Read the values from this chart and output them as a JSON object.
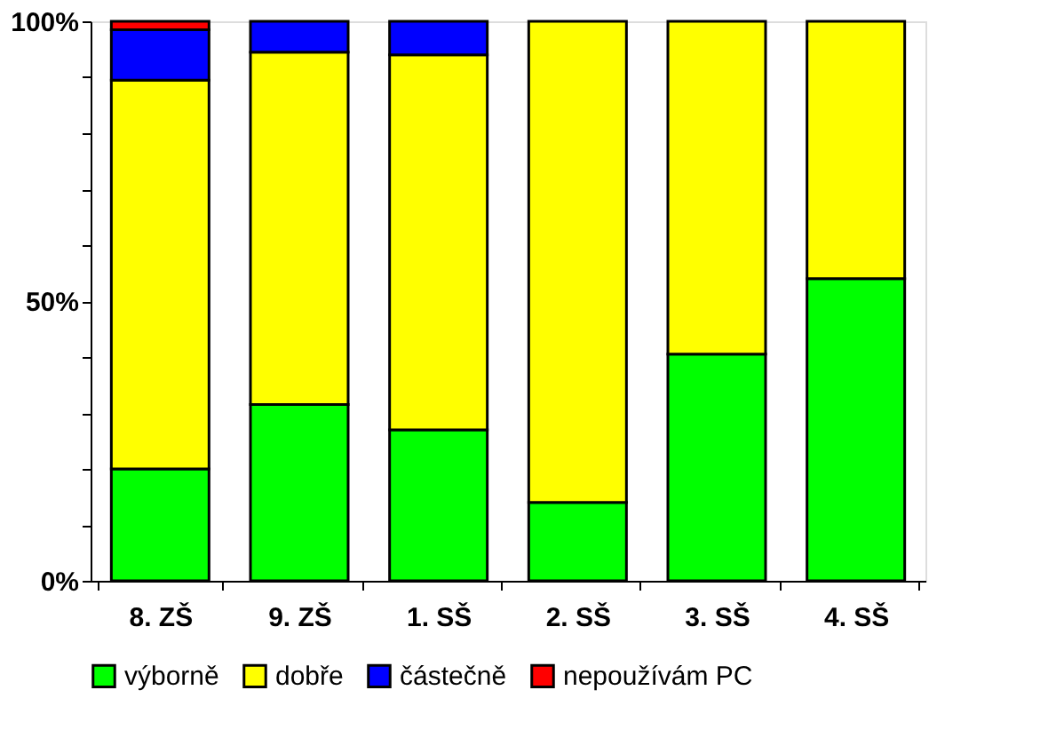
{
  "chart_data": {
    "type": "bar",
    "stacked": true,
    "categories": [
      "8. ZŠ",
      "9. ZŠ",
      "1. SŠ",
      "2. SŠ",
      "3. SŠ",
      "4. SŠ"
    ],
    "series": [
      {
        "name": "výborně",
        "color": "#00ff00",
        "values": [
          20,
          31.5,
          27,
          14,
          40.5,
          54
        ]
      },
      {
        "name": "dobře",
        "color": "#ffff00",
        "values": [
          69.5,
          63,
          67,
          86,
          59.5,
          46
        ]
      },
      {
        "name": "částečně",
        "color": "#0000ff",
        "values": [
          9,
          5.5,
          6,
          null,
          null,
          null
        ]
      },
      {
        "name": "nepoužívám PC",
        "color": "#ff0000",
        "values": [
          1.5,
          null,
          null,
          null,
          null,
          null
        ]
      }
    ],
    "ylim": [
      0,
      100
    ],
    "yticks": [
      {
        "value": 0,
        "label": "0%"
      },
      {
        "value": 10,
        "label": null
      },
      {
        "value": 20,
        "label": null
      },
      {
        "value": 30,
        "label": null
      },
      {
        "value": 40,
        "label": null
      },
      {
        "value": 50,
        "label": "50%"
      },
      {
        "value": 60,
        "label": null
      },
      {
        "value": 70,
        "label": null
      },
      {
        "value": 80,
        "label": null
      },
      {
        "value": 90,
        "label": null
      },
      {
        "value": 100,
        "label": "100%"
      }
    ],
    "grid": false,
    "legend": "bottom"
  }
}
